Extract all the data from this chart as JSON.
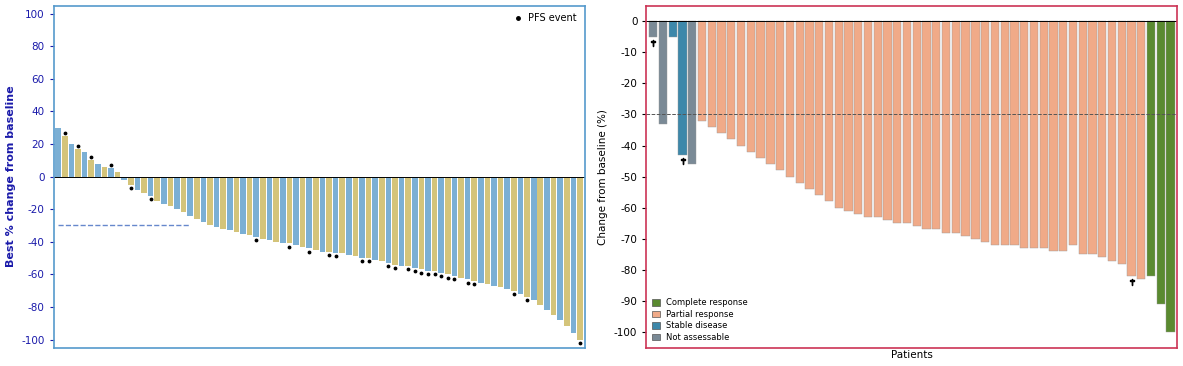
{
  "left_chart": {
    "ylabel": "Best % change from baseline",
    "ylabel_color": "#1a1aaa",
    "ylim": [
      -105,
      105
    ],
    "yticks": [
      -100,
      -80,
      -60,
      -40,
      -20,
      0,
      20,
      40,
      60,
      80,
      100
    ],
    "dashed_line_y": -30,
    "dashed_line_color": "#6688cc",
    "bar_color_blue": "#7bafd4",
    "bar_color_yellow": "#d4c47a",
    "border_color": "#5599cc",
    "values": [
      30,
      25,
      20,
      17,
      15,
      10,
      8,
      6,
      5,
      3,
      -2,
      -5,
      -8,
      -10,
      -12,
      -15,
      -17,
      -18,
      -20,
      -22,
      -24,
      -26,
      -28,
      -30,
      -31,
      -32,
      -33,
      -34,
      -35,
      -36,
      -37,
      -38,
      -39,
      -40,
      -41,
      -41,
      -42,
      -43,
      -44,
      -45,
      -46,
      -46,
      -47,
      -47,
      -48,
      -49,
      -50,
      -50,
      -51,
      -52,
      -53,
      -54,
      -55,
      -55,
      -56,
      -57,
      -58,
      -58,
      -59,
      -60,
      -61,
      -62,
      -63,
      -64,
      -65,
      -66,
      -67,
      -68,
      -69,
      -70,
      -72,
      -74,
      -76,
      -79,
      -82,
      -85,
      -88,
      -92,
      -96,
      -100
    ],
    "pfs_events": [
      0,
      1,
      0,
      1,
      0,
      1,
      0,
      0,
      1,
      0,
      0,
      1,
      0,
      0,
      1,
      0,
      0,
      0,
      0,
      0,
      0,
      0,
      0,
      0,
      0,
      0,
      0,
      0,
      0,
      0,
      1,
      0,
      0,
      0,
      0,
      1,
      0,
      0,
      1,
      0,
      0,
      1,
      1,
      0,
      0,
      0,
      1,
      1,
      0,
      0,
      1,
      1,
      0,
      1,
      1,
      1,
      1,
      1,
      1,
      1,
      1,
      0,
      1,
      1,
      0,
      0,
      0,
      0,
      0,
      1,
      0,
      1,
      0,
      0,
      0,
      0,
      0,
      0,
      0,
      1
    ]
  },
  "right_chart": {
    "ylabel": "Change from baseline (%)",
    "xlabel": "Patients",
    "ylim": [
      -105,
      5
    ],
    "yticks": [
      0,
      -10,
      -20,
      -30,
      -40,
      -50,
      -60,
      -70,
      -80,
      -90,
      -100
    ],
    "dashed_line_y": -30,
    "dashed_line_color": "#555555",
    "color_partial": "#f0aa88",
    "color_complete": "#5a8a30",
    "color_stable": "#3d88aa",
    "color_not_assessable": "#7a8a96",
    "border_color": "#cc3355",
    "values": [
      -5,
      -33,
      -5,
      -43,
      -46,
      -32,
      -34,
      -36,
      -38,
      -40,
      -42,
      -44,
      -46,
      -48,
      -50,
      -52,
      -54,
      -56,
      -58,
      -60,
      -61,
      -62,
      -63,
      -63,
      -64,
      -65,
      -65,
      -66,
      -67,
      -67,
      -68,
      -68,
      -69,
      -70,
      -71,
      -72,
      -72,
      -72,
      -73,
      -73,
      -73,
      -74,
      -74,
      -72,
      -75,
      -75,
      -76,
      -77,
      -78,
      -82,
      -83,
      -82,
      -91,
      -100
    ],
    "bar_types": [
      "not_assessable",
      "not_assessable",
      "stable",
      "stable",
      "not_assessable",
      "partial",
      "partial",
      "partial",
      "partial",
      "partial",
      "partial",
      "partial",
      "partial",
      "partial",
      "partial",
      "partial",
      "partial",
      "partial",
      "partial",
      "partial",
      "partial",
      "partial",
      "partial",
      "partial",
      "partial",
      "partial",
      "partial",
      "partial",
      "partial",
      "partial",
      "partial",
      "partial",
      "partial",
      "partial",
      "partial",
      "partial",
      "partial",
      "partial",
      "partial",
      "partial",
      "partial",
      "partial",
      "partial",
      "partial",
      "partial",
      "partial",
      "partial",
      "partial",
      "partial",
      "partial",
      "partial",
      "complete",
      "complete",
      "complete"
    ],
    "pfs_markers_idx": [
      0,
      3,
      49
    ]
  }
}
